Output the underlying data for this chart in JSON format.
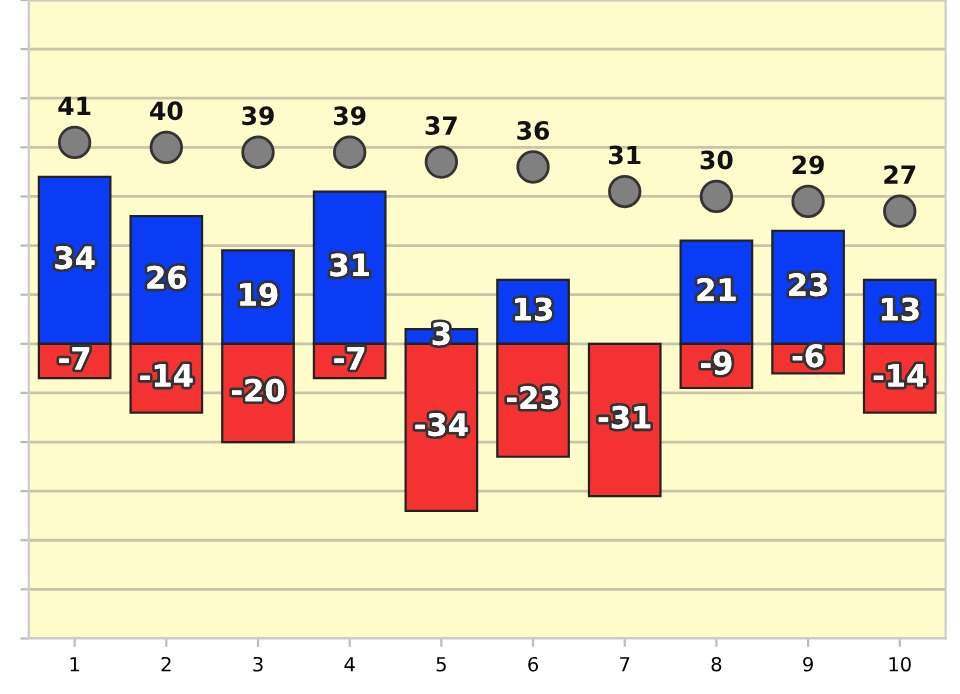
{
  "chart_data": {
    "type": "bar",
    "stacked": true,
    "categories": [
      "1",
      "2",
      "3",
      "4",
      "5",
      "6",
      "7",
      "8",
      "9",
      "10"
    ],
    "series": [
      {
        "color": "#0a3cf5",
        "values": [
          34,
          26,
          19,
          31,
          3,
          13,
          null,
          21,
          23,
          13
        ]
      },
      {
        "color": "#f53232",
        "values": [
          -7,
          -14,
          -20,
          -7,
          -34,
          -23,
          -31,
          -9,
          -6,
          -14
        ]
      },
      {
        "type": "scatter",
        "color": "#808080",
        "x": [
          "1",
          "2",
          "3",
          "4",
          "5",
          "6",
          "7",
          "8",
          "9",
          "10"
        ],
        "values": [
          41,
          40,
          39,
          39,
          37,
          36,
          31,
          30,
          29,
          27
        ]
      }
    ],
    "ylim": [
      -60,
      70
    ],
    "yticks": [
      {
        "value": -60,
        "label": null
      },
      {
        "value": -50,
        "label": null
      },
      {
        "value": -40,
        "label": null
      },
      {
        "value": -30,
        "label": null
      },
      {
        "value": -20,
        "label": null
      },
      {
        "value": -10,
        "label": null
      },
      {
        "value": 0,
        "label": null
      },
      {
        "value": 10,
        "label": null
      },
      {
        "value": 20,
        "label": null
      },
      {
        "value": 30,
        "label": null
      },
      {
        "value": 40,
        "label": null
      },
      {
        "value": 50,
        "label": null
      },
      {
        "value": 60,
        "label": null
      },
      {
        "value": 70,
        "label": null
      }
    ],
    "tick_labels": "x",
    "grid": "y",
    "data_labels": true,
    "marker": "circle",
    "legend": false
  }
}
